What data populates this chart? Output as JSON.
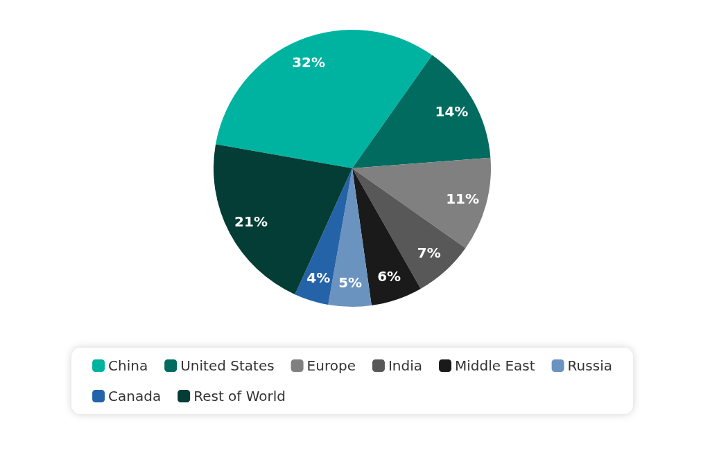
{
  "chart_data": {
    "type": "pie",
    "categories": [
      "China",
      "United States",
      "Europe",
      "India",
      "Middle East",
      "Russia",
      "Canada",
      "Rest of World"
    ],
    "values": [
      32,
      14,
      11,
      7,
      6,
      5,
      4,
      21
    ],
    "value_labels": [
      "32%",
      "14%",
      "11%",
      "7%",
      "6%",
      "5%",
      "4%",
      "21%"
    ],
    "colors": [
      "#00b3a0",
      "#006b5e",
      "#808080",
      "#585858",
      "#1a1a1a",
      "#6a93c0",
      "#2563a8",
      "#033d36"
    ],
    "legend": "bottom"
  }
}
